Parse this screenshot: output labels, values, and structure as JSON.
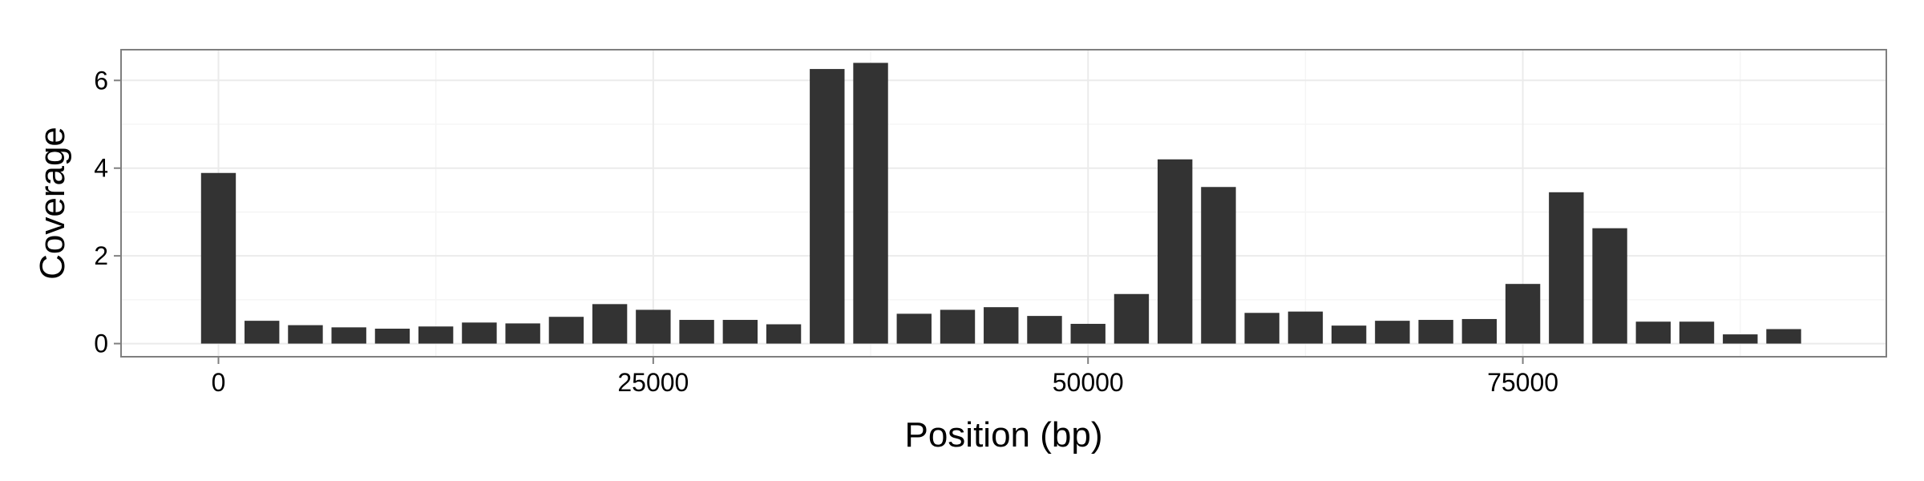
{
  "chart_data": {
    "type": "bar",
    "title": "",
    "xlabel": "Position (bp)",
    "ylabel": "Coverage",
    "x_ticks": [
      0,
      25000,
      50000,
      75000
    ],
    "y_ticks": [
      0,
      2,
      4,
      6
    ],
    "xlim": [
      -5600,
      95900
    ],
    "ylim": [
      -0.3,
      6.7
    ],
    "bin_width": 2000,
    "x": [
      0,
      2500,
      5000,
      7500,
      10000,
      12500,
      15000,
      17500,
      20000,
      22500,
      25000,
      27500,
      30000,
      32500,
      35000,
      37500,
      40000,
      42500,
      45000,
      47500,
      50000,
      52500,
      55000,
      57500,
      60000,
      62500,
      65000,
      67500,
      70000,
      72500,
      75000,
      77500,
      80000,
      82500,
      85000,
      87500,
      90000
    ],
    "values": [
      3.89,
      0.52,
      0.42,
      0.37,
      0.34,
      0.39,
      0.48,
      0.46,
      0.61,
      0.9,
      0.77,
      0.54,
      0.54,
      0.44,
      6.26,
      6.4,
      0.68,
      0.77,
      0.83,
      0.63,
      0.45,
      1.13,
      4.2,
      3.57,
      0.7,
      0.73,
      0.41,
      0.52,
      0.54,
      0.56,
      1.36,
      3.45,
      2.63,
      0.5,
      0.5,
      0.21,
      0.33
    ],
    "grid": true,
    "theme": "bw",
    "colors": {
      "bar": "#333333",
      "panel_border": "#7f7f7f",
      "grid_major": "#ebebeb",
      "grid_minor": "#f5f5f5",
      "axis_tick": "#7f7f7f"
    }
  }
}
